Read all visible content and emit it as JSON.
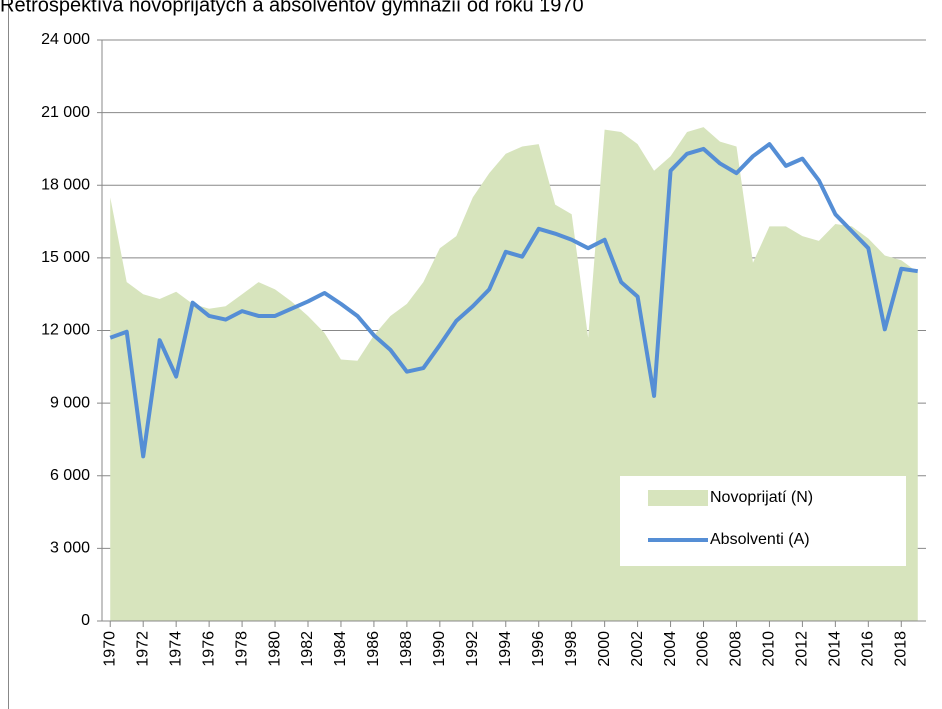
{
  "chart_data": {
    "type": "area_line",
    "title": "Retrospektíva novoprijatých a absolventov gymnázií od roku 1970",
    "x": [
      1970,
      1971,
      1972,
      1973,
      1974,
      1975,
      1976,
      1977,
      1978,
      1979,
      1980,
      1981,
      1982,
      1983,
      1984,
      1985,
      1986,
      1987,
      1988,
      1989,
      1990,
      1991,
      1992,
      1993,
      1994,
      1995,
      1996,
      1997,
      1998,
      1999,
      2000,
      2001,
      2002,
      2003,
      2004,
      2005,
      2006,
      2007,
      2008,
      2009,
      2010,
      2011,
      2012,
      2013,
      2014,
      2015,
      2016,
      2017,
      2018,
      2019
    ],
    "xlim": [
      1969.5,
      2019.5
    ],
    "xticks": [
      1970,
      1972,
      1974,
      1976,
      1978,
      1980,
      1982,
      1984,
      1986,
      1988,
      1990,
      1992,
      1994,
      1996,
      1998,
      2000,
      2002,
      2004,
      2006,
      2008,
      2010,
      2012,
      2014,
      2016,
      2018
    ],
    "ylim": [
      0,
      24000
    ],
    "yticks": [
      0,
      {
        "value": 3000,
        "label": "3 000"
      },
      {
        "value": 6000,
        "label": "6 000"
      },
      {
        "value": 9000,
        "label": "9 000"
      },
      {
        "value": 12000,
        "label": "12 000"
      },
      {
        "value": 15000,
        "label": "15 000"
      },
      {
        "value": 18000,
        "label": "18 000"
      },
      {
        "value": 21000,
        "label": "21 000"
      },
      {
        "value": 24000,
        "label": "24 000"
      }
    ],
    "grid": true,
    "legend": "lower right",
    "series": [
      {
        "name": "Novoprijatí (N)",
        "kind": "area",
        "color": "#d7e4bd",
        "values": [
          17500,
          14000,
          13500,
          13300,
          13600,
          13100,
          12900,
          13000,
          13500,
          14000,
          13700,
          13200,
          12600,
          11900,
          10800,
          10750,
          11800,
          12600,
          13100,
          14000,
          15400,
          15900,
          17500,
          18500,
          19300,
          19600,
          19700,
          17200,
          16800,
          11700,
          20300,
          20200,
          19700,
          18600,
          19200,
          20200,
          20400,
          19800,
          19600,
          14800,
          16300,
          16300,
          15900,
          15700,
          16400,
          16300,
          15800,
          15100,
          14900,
          14400
        ]
      },
      {
        "name": "Absolventi (A)",
        "kind": "line",
        "color": "#558ed5",
        "values": [
          11700,
          11950,
          6800,
          11600,
          10100,
          13150,
          12600,
          12450,
          12800,
          12600,
          12600,
          12900,
          13200,
          13550,
          13100,
          12600,
          11800,
          11200,
          10300,
          10450,
          11400,
          12400,
          13000,
          13700,
          15250,
          15050,
          16200,
          16000,
          15750,
          15400,
          15750,
          14000,
          13400,
          9300,
          18600,
          19300,
          19500,
          18900,
          18500,
          19200,
          19700,
          18800,
          19100,
          18200,
          16800,
          16100,
          15400,
          12050,
          14550,
          14450
        ]
      }
    ]
  }
}
